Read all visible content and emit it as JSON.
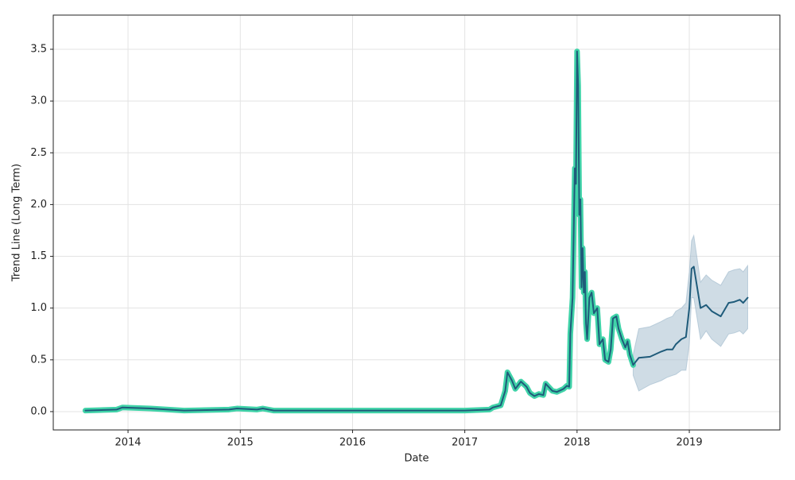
{
  "chart_data": {
    "type": "line",
    "xlabel": "Date",
    "ylabel": "Trend Line (Long Term)",
    "xlim": [
      2013.334,
      2019.807
    ],
    "ylim": [
      -0.177,
      3.83
    ],
    "xticks": [
      2014,
      2015,
      2016,
      2017,
      2018,
      2019
    ],
    "yticks": [
      {
        "value": 0,
        "label": "0.0"
      },
      {
        "value": 0.5,
        "label": "0.5"
      },
      {
        "value": 1,
        "label": "1.0"
      },
      {
        "value": 1.5,
        "label": "1.5"
      },
      {
        "value": 2,
        "label": "2.0"
      },
      {
        "value": 2.5,
        "label": "2.5"
      },
      {
        "value": 3,
        "label": "3.0"
      },
      {
        "value": 3.5,
        "label": "3.5"
      }
    ],
    "grid": true,
    "band": {
      "color": "#a7bfd0",
      "x": [
        2018.5,
        2018.55,
        2018.65,
        2018.75,
        2018.8,
        2018.85,
        2018.88,
        2018.93,
        2018.97,
        2019.0,
        2019.02,
        2019.04,
        2019.1,
        2019.15,
        2019.2,
        2019.28,
        2019.35,
        2019.4,
        2019.45,
        2019.48,
        2019.52
      ],
      "upper": [
        0.55,
        0.8,
        0.82,
        0.87,
        0.9,
        0.92,
        0.97,
        1.0,
        1.05,
        1.35,
        1.65,
        1.7,
        1.25,
        1.32,
        1.27,
        1.22,
        1.35,
        1.37,
        1.38,
        1.35,
        1.41
      ],
      "lower": [
        0.35,
        0.2,
        0.26,
        0.3,
        0.33,
        0.35,
        0.36,
        0.4,
        0.4,
        0.65,
        1.1,
        1.1,
        0.7,
        0.78,
        0.7,
        0.63,
        0.75,
        0.76,
        0.78,
        0.75,
        0.8
      ]
    },
    "series": [
      {
        "color": "#40d3a8",
        "width": 7,
        "x": [
          2013.62,
          2013.9,
          2013.95,
          2014.2,
          2014.5,
          2014.9,
          2014.97,
          2015.15,
          2015.2,
          2015.3,
          2015.6,
          2016.0,
          2016.5,
          2017.0,
          2017.22,
          2017.25,
          2017.32,
          2017.36,
          2017.38,
          2017.42,
          2017.45,
          2017.5,
          2017.55,
          2017.58,
          2017.62,
          2017.66,
          2017.7,
          2017.72,
          2017.78,
          2017.82,
          2017.88,
          2017.91,
          2017.93,
          2017.94,
          2017.96,
          2017.98,
          2017.99,
          2018.0,
          2018.01,
          2018.02,
          2018.03,
          2018.04,
          2018.05,
          2018.06,
          2018.07,
          2018.08,
          2018.09,
          2018.11,
          2018.13,
          2018.15,
          2018.18,
          2018.2,
          2018.23,
          2018.25,
          2018.28,
          2018.3,
          2018.32,
          2018.35,
          2018.37,
          2018.4,
          2018.43,
          2018.45,
          2018.47,
          2018.5
        ],
        "values": [
          0.01,
          0.02,
          0.04,
          0.03,
          0.01,
          0.02,
          0.03,
          0.02,
          0.03,
          0.01,
          0.01,
          0.01,
          0.01,
          0.01,
          0.02,
          0.04,
          0.06,
          0.2,
          0.38,
          0.3,
          0.22,
          0.29,
          0.24,
          0.18,
          0.15,
          0.17,
          0.16,
          0.27,
          0.2,
          0.19,
          0.22,
          0.25,
          0.24,
          0.75,
          1.1,
          2.35,
          2.2,
          3.48,
          3.15,
          1.9,
          2.05,
          1.2,
          1.58,
          1.15,
          1.35,
          0.85,
          0.7,
          1.1,
          1.15,
          0.95,
          1.0,
          0.65,
          0.7,
          0.5,
          0.48,
          0.6,
          0.9,
          0.92,
          0.8,
          0.7,
          0.62,
          0.68,
          0.55,
          0.45
        ]
      },
      {
        "color": "#1f5b7a",
        "width": 2,
        "x": [
          2013.62,
          2013.9,
          2013.95,
          2014.2,
          2014.5,
          2014.9,
          2014.97,
          2015.15,
          2015.2,
          2015.3,
          2015.6,
          2016.0,
          2016.5,
          2017.0,
          2017.22,
          2017.25,
          2017.32,
          2017.36,
          2017.38,
          2017.42,
          2017.45,
          2017.5,
          2017.55,
          2017.58,
          2017.62,
          2017.66,
          2017.7,
          2017.72,
          2017.78,
          2017.82,
          2017.88,
          2017.91,
          2017.93,
          2017.94,
          2017.96,
          2017.98,
          2017.99,
          2018.0,
          2018.01,
          2018.02,
          2018.03,
          2018.04,
          2018.05,
          2018.06,
          2018.07,
          2018.08,
          2018.09,
          2018.11,
          2018.13,
          2018.15,
          2018.18,
          2018.2,
          2018.23,
          2018.25,
          2018.28,
          2018.3,
          2018.32,
          2018.35,
          2018.37,
          2018.4,
          2018.43,
          2018.45,
          2018.47,
          2018.5,
          2018.55,
          2018.65,
          2018.75,
          2018.8,
          2018.85,
          2018.88,
          2018.93,
          2018.97,
          2019.0,
          2019.02,
          2019.04,
          2019.1,
          2019.15,
          2019.2,
          2019.28,
          2019.35,
          2019.4,
          2019.45,
          2019.48,
          2019.52
        ],
        "values": [
          0.01,
          0.02,
          0.04,
          0.03,
          0.01,
          0.02,
          0.03,
          0.02,
          0.03,
          0.01,
          0.01,
          0.01,
          0.01,
          0.01,
          0.02,
          0.04,
          0.06,
          0.2,
          0.38,
          0.3,
          0.22,
          0.29,
          0.24,
          0.18,
          0.15,
          0.17,
          0.16,
          0.27,
          0.2,
          0.19,
          0.22,
          0.25,
          0.24,
          0.75,
          1.1,
          2.35,
          2.2,
          3.48,
          3.15,
          1.9,
          2.05,
          1.2,
          1.58,
          1.15,
          1.35,
          0.85,
          0.7,
          1.1,
          1.15,
          0.95,
          1.0,
          0.65,
          0.7,
          0.5,
          0.48,
          0.6,
          0.9,
          0.92,
          0.8,
          0.7,
          0.62,
          0.68,
          0.55,
          0.45,
          0.52,
          0.53,
          0.58,
          0.6,
          0.6,
          0.65,
          0.7,
          0.72,
          1.0,
          1.38,
          1.4,
          1.0,
          1.03,
          0.97,
          0.92,
          1.05,
          1.06,
          1.08,
          1.05,
          1.1
        ]
      }
    ]
  }
}
